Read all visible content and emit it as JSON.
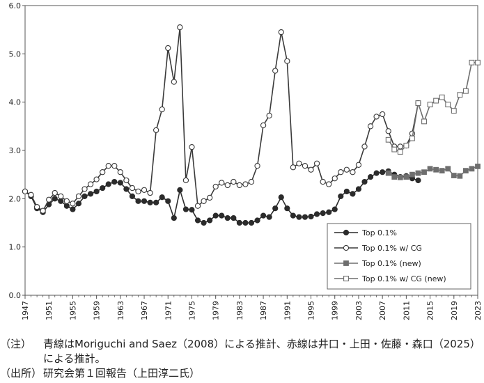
{
  "chart_data": {
    "type": "line",
    "x_tick_labels": [
      "1947",
      "1951",
      "1955",
      "1959",
      "1963",
      "1967",
      "1971",
      "1975",
      "1979",
      "1983",
      "1987",
      "1991",
      "1995",
      "1999",
      "2003",
      "2007",
      "2011",
      "2015",
      "2019",
      "2023"
    ],
    "y_tick_labels": [
      "0.0",
      "1.0",
      "2.0",
      "3.0",
      "4.0",
      "5.0",
      "6.0"
    ],
    "xlim": [
      1947,
      2023
    ],
    "ylim": [
      0,
      6
    ],
    "grid": false,
    "legend_position": "bottom-right",
    "series": [
      {
        "name": "Top 0.1%",
        "marker": "filled-circle",
        "color": "#2b2b2b",
        "x": [
          1947,
          1948,
          1949,
          1950,
          1951,
          1952,
          1953,
          1954,
          1955,
          1956,
          1957,
          1958,
          1959,
          1960,
          1961,
          1962,
          1963,
          1964,
          1965,
          1966,
          1967,
          1968,
          1969,
          1970,
          1971,
          1972,
          1973,
          1974,
          1975,
          1976,
          1977,
          1978,
          1979,
          1980,
          1981,
          1982,
          1983,
          1984,
          1985,
          1986,
          1987,
          1988,
          1989,
          1990,
          1991,
          1992,
          1993,
          1994,
          1995,
          1996,
          1997,
          1998,
          1999,
          2000,
          2001,
          2002,
          2003,
          2004,
          2005,
          2006,
          2007,
          2008,
          2009,
          2010,
          2011,
          2012,
          2013
        ],
        "values": [
          2.15,
          2.05,
          1.8,
          1.72,
          1.88,
          2.0,
          1.95,
          1.85,
          1.78,
          1.9,
          2.05,
          2.1,
          2.15,
          2.22,
          2.3,
          2.35,
          2.33,
          2.2,
          2.05,
          1.95,
          1.95,
          1.92,
          1.92,
          2.03,
          1.95,
          1.6,
          2.18,
          1.78,
          1.77,
          1.55,
          1.5,
          1.55,
          1.65,
          1.65,
          1.6,
          1.6,
          1.5,
          1.5,
          1.5,
          1.55,
          1.65,
          1.62,
          1.8,
          2.03,
          1.8,
          1.65,
          1.62,
          1.62,
          1.63,
          1.68,
          1.7,
          1.72,
          1.78,
          2.05,
          2.15,
          2.1,
          2.2,
          2.35,
          2.45,
          2.53,
          2.55,
          2.57,
          2.5,
          2.45,
          2.47,
          2.42,
          2.38
        ]
      },
      {
        "name": "Top 0.1% w/ CG",
        "marker": "open-circle",
        "color": "#3a3a3a",
        "x": [
          1947,
          1948,
          1949,
          1950,
          1951,
          1952,
          1953,
          1954,
          1955,
          1956,
          1957,
          1958,
          1959,
          1960,
          1961,
          1962,
          1963,
          1964,
          1965,
          1966,
          1967,
          1968,
          1969,
          1970,
          1971,
          1972,
          1973,
          1974,
          1975,
          1976,
          1977,
          1978,
          1979,
          1980,
          1981,
          1982,
          1983,
          1984,
          1985,
          1986,
          1987,
          1988,
          1989,
          1990,
          1991,
          1992,
          1993,
          1994,
          1995,
          1996,
          1997,
          1998,
          1999,
          2000,
          2001,
          2002,
          2003,
          2004,
          2005,
          2006,
          2007,
          2008,
          2009,
          2010,
          2011,
          2012,
          2013
        ],
        "values": [
          2.15,
          2.08,
          1.83,
          1.75,
          1.98,
          2.12,
          2.05,
          1.95,
          1.9,
          2.05,
          2.2,
          2.3,
          2.4,
          2.55,
          2.68,
          2.68,
          2.55,
          2.38,
          2.22,
          2.15,
          2.18,
          2.12,
          3.42,
          3.85,
          5.12,
          4.42,
          5.55,
          2.38,
          3.07,
          1.85,
          1.95,
          2.02,
          2.25,
          2.33,
          2.28,
          2.35,
          2.28,
          2.3,
          2.35,
          2.68,
          3.52,
          3.72,
          4.65,
          5.45,
          4.85,
          2.65,
          2.73,
          2.68,
          2.6,
          2.73,
          2.35,
          2.3,
          2.42,
          2.55,
          2.6,
          2.55,
          2.7,
          3.08,
          3.5,
          3.7,
          3.75,
          3.4,
          3.08,
          3.08,
          3.1,
          3.35,
          3.98
        ]
      },
      {
        "name": "Top 0.1% (new)",
        "marker": "filled-square",
        "color": "#6e6e6e",
        "x": [
          2008,
          2009,
          2010,
          2011,
          2012,
          2013,
          2014,
          2015,
          2016,
          2017,
          2018,
          2019,
          2020,
          2021,
          2022,
          2023
        ],
        "values": [
          2.53,
          2.45,
          2.44,
          2.45,
          2.5,
          2.53,
          2.55,
          2.62,
          2.6,
          2.58,
          2.62,
          2.48,
          2.47,
          2.58,
          2.62,
          2.67
        ]
      },
      {
        "name": "Top 0.1% w/ CG (new)",
        "marker": "open-square",
        "color": "#6e6e6e",
        "x": [
          2008,
          2009,
          2010,
          2011,
          2012,
          2013,
          2014,
          2015,
          2016,
          2017,
          2018,
          2019,
          2020,
          2021,
          2022,
          2023
        ],
        "values": [
          3.22,
          3.02,
          2.97,
          3.1,
          3.25,
          3.98,
          3.6,
          3.95,
          4.03,
          4.1,
          3.95,
          3.82,
          4.15,
          4.23,
          4.82,
          4.82
        ]
      }
    ]
  },
  "notes": {
    "note_tag": "（注）",
    "note_text": "青線はMoriguchi and Saez（2008）による推計、赤線は井口・上田・佐藤・森口（2025）による推計。",
    "source_tag": "（出所）",
    "source_text": "研究会第１回報告（上田淳二氏）"
  }
}
